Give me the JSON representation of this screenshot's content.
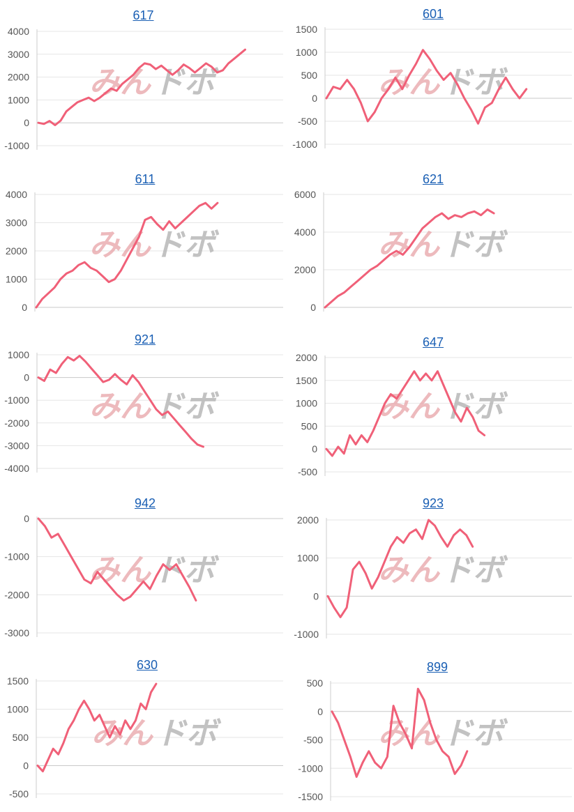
{
  "watermark": {
    "part1": "みん",
    "part2": "ドボ"
  },
  "colors": {
    "line": "#f06078",
    "grid": "#e6e6e6",
    "axis": "#cccccc",
    "title": "#1a5fb4"
  },
  "chart_data": [
    {
      "type": "line",
      "title": "617",
      "ylim": [
        -1000,
        4000
      ],
      "yticks": [
        4000,
        3000,
        2000,
        1000,
        0,
        -1000
      ],
      "values": [
        0,
        -50,
        80,
        -100,
        100,
        500,
        700,
        900,
        1000,
        1100,
        950,
        1100,
        1300,
        1500,
        1400,
        1700,
        1900,
        2100,
        2400,
        2600,
        2550,
        2350,
        2500,
        2300,
        2100,
        2300,
        2550,
        2400,
        2200,
        2400,
        2600,
        2450,
        2200,
        2300,
        2600,
        2800,
        3000,
        3200
      ]
    },
    {
      "type": "line",
      "title": "601",
      "ylim": [
        -1000,
        1500
      ],
      "yticks": [
        1500,
        1000,
        500,
        0,
        -500,
        -1000
      ],
      "values": [
        0,
        250,
        200,
        400,
        200,
        -100,
        -500,
        -300,
        0,
        200,
        450,
        200,
        500,
        750,
        1050,
        850,
        600,
        400,
        550,
        300,
        0,
        -250,
        -550,
        -200,
        -100,
        200,
        450,
        200,
        0,
        200
      ]
    },
    {
      "type": "line",
      "title": "611",
      "ylim": [
        0,
        4000
      ],
      "yticks": [
        4000,
        3000,
        2000,
        1000,
        0
      ],
      "values": [
        0,
        300,
        500,
        700,
        1000,
        1200,
        1300,
        1500,
        1600,
        1400,
        1300,
        1100,
        900,
        1000,
        1300,
        1700,
        2100,
        2500,
        3100,
        3200,
        2950,
        2750,
        3050,
        2800,
        3000,
        3200,
        3400,
        3600,
        3700,
        3500,
        3700
      ]
    },
    {
      "type": "line",
      "title": "621",
      "ylim": [
        0,
        6000
      ],
      "yticks": [
        6000,
        4000,
        2000,
        0
      ],
      "values": [
        0,
        300,
        600,
        800,
        1100,
        1400,
        1700,
        2000,
        2200,
        2500,
        2800,
        3000,
        2800,
        3200,
        3700,
        4200,
        4500,
        4800,
        5000,
        4700,
        4900,
        4800,
        5000,
        5100,
        4900,
        5200,
        5000
      ]
    },
    {
      "type": "line",
      "title": "921",
      "ylim": [
        -4000,
        1000
      ],
      "yticks": [
        1000,
        0,
        -1000,
        -2000,
        -3000,
        -4000
      ],
      "values": [
        0,
        -150,
        350,
        200,
        600,
        900,
        750,
        950,
        700,
        400,
        100,
        -200,
        -100,
        150,
        -100,
        -300,
        100,
        -200,
        -600,
        -1000,
        -1400,
        -1650,
        -1500,
        -1800,
        -2100,
        -2400,
        -2700,
        -2950,
        -3050
      ]
    },
    {
      "type": "line",
      "title": "647",
      "ylim": [
        -500,
        2000
      ],
      "yticks": [
        2000,
        1500,
        1000,
        500,
        0,
        -500
      ],
      "values": [
        0,
        -150,
        50,
        -100,
        300,
        100,
        300,
        150,
        400,
        700,
        1000,
        1200,
        1100,
        1300,
        1500,
        1700,
        1500,
        1650,
        1500,
        1700,
        1400,
        1100,
        800,
        600,
        900,
        700,
        400,
        300
      ]
    },
    {
      "type": "line",
      "title": "942",
      "ylim": [
        -3000,
        0
      ],
      "yticks": [
        0,
        -1000,
        -2000,
        -3000
      ],
      "values": [
        0,
        -200,
        -500,
        -400,
        -700,
        -1000,
        -1300,
        -1600,
        -1700,
        -1400,
        -1600,
        -1800,
        -2000,
        -2150,
        -2050,
        -1850,
        -1650,
        -1850,
        -1500,
        -1200,
        -1350,
        -1200,
        -1500,
        -1800,
        -2150
      ]
    },
    {
      "type": "line",
      "title": "923",
      "ylim": [
        -1000,
        2000
      ],
      "yticks": [
        2000,
        1000,
        0,
        -1000
      ],
      "values": [
        0,
        -300,
        -550,
        -300,
        700,
        900,
        600,
        200,
        500,
        900,
        1300,
        1550,
        1400,
        1650,
        1750,
        1500,
        2000,
        1850,
        1550,
        1300,
        1600,
        1750,
        1600,
        1300
      ]
    },
    {
      "type": "line",
      "title": "630",
      "ylim": [
        -500,
        1500
      ],
      "yticks": [
        1500,
        1000,
        500,
        0,
        -500
      ],
      "values": [
        0,
        -100,
        100,
        300,
        200,
        400,
        650,
        800,
        1000,
        1150,
        1000,
        800,
        900,
        700,
        500,
        700,
        550,
        800,
        650,
        800,
        1100,
        1000,
        1300,
        1450
      ]
    },
    {
      "type": "line",
      "title": "899",
      "ylim": [
        -1500,
        500
      ],
      "yticks": [
        500,
        0,
        -500,
        -1000,
        -1500
      ],
      "values": [
        0,
        -200,
        -500,
        -800,
        -1150,
        -900,
        -700,
        -900,
        -1000,
        -800,
        100,
        -200,
        -400,
        -650,
        400,
        200,
        -200,
        -500,
        -700,
        -800,
        -1100,
        -950,
        -700
      ]
    }
  ]
}
